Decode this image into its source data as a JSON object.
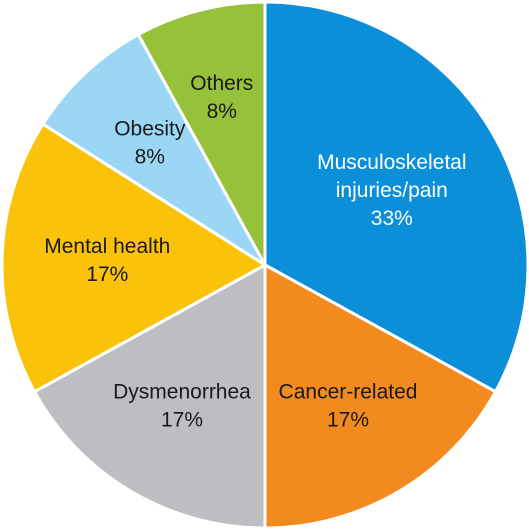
{
  "chart_data": {
    "type": "pie",
    "title": "",
    "slices": [
      {
        "label_lines": [
          "Musculoskeletal",
          "injuries/pain"
        ],
        "value": 33,
        "value_label": "33%",
        "color": "#0a8fd8",
        "text_color": "#ffffff"
      },
      {
        "label_lines": [
          "Cancer-related"
        ],
        "value": 17,
        "value_label": "17%",
        "color": "#f28a1e",
        "text_color": "#1a1a1a"
      },
      {
        "label_lines": [
          "Dysmenorrhea"
        ],
        "value": 17,
        "value_label": "17%",
        "color": "#bdbec2",
        "text_color": "#1a1a1a"
      },
      {
        "label_lines": [
          "Mental health"
        ],
        "value": 17,
        "value_label": "17%",
        "color": "#fbc20a",
        "text_color": "#1a1a1a"
      },
      {
        "label_lines": [
          "Obesity"
        ],
        "value": 8,
        "value_label": "8%",
        "color": "#9bd7f5",
        "text_color": "#1a1a1a"
      },
      {
        "label_lines": [
          "Others"
        ],
        "value": 8,
        "value_label": "8%",
        "color": "#97c13b",
        "text_color": "#1a1a1a"
      }
    ],
    "start_angle": "12 o'clock",
    "direction": "clockwise",
    "slice_border_color": "#ffffff",
    "legend": "none"
  }
}
